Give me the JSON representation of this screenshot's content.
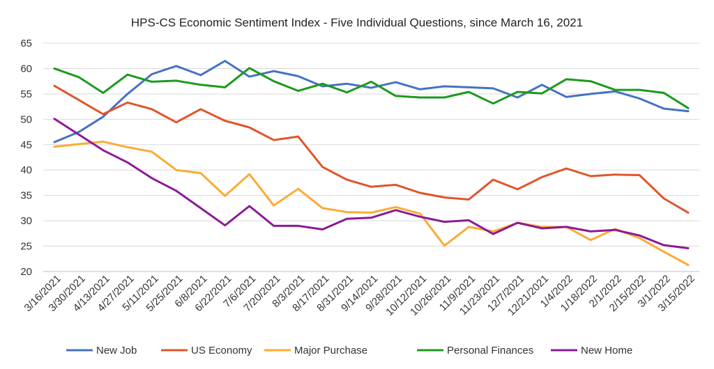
{
  "chart_data": {
    "type": "line",
    "title": "HPS-CS Economic Sentiment Index - Five Individual Questions, since March 16, 2021",
    "xlabel": "",
    "ylabel": "",
    "ylim": [
      20,
      65
    ],
    "yticks": [
      "65",
      "60",
      "55",
      "50",
      "45",
      "40",
      "35",
      "30",
      "25",
      "20"
    ],
    "grid": "horizontal",
    "legend": "bottom",
    "categories": [
      "3/16/2021",
      "3/30/2021",
      "4/13/2021",
      "4/27/2021",
      "5/11/2021",
      "5/25/2021",
      "6/8/2021",
      "6/22/2021",
      "7/6/2021",
      "7/20/2021",
      "8/3/2021",
      "8/17/2021",
      "8/31/2021",
      "9/14/2021",
      "9/28/2021",
      "10/12/2021",
      "10/26/2021",
      "11/9/2021",
      "11/23/2021",
      "12/7/2021",
      "12/21/2021",
      "1/4/2022",
      "1/18/2022",
      "2/1/2022",
      "2/15/2022",
      "3/1/2022",
      "3/15/2022"
    ],
    "series": [
      {
        "name": "New Job",
        "color": "#4472c4",
        "values": [
          45.5,
          47.5,
          50.5,
          55.0,
          58.9,
          60.5,
          58.7,
          61.5,
          58.4,
          59.5,
          58.5,
          56.5,
          57.0,
          56.2,
          57.3,
          55.9,
          56.5,
          56.3,
          56.1,
          54.3,
          56.8,
          54.4,
          55.0,
          55.5,
          54.1,
          52.1,
          51.6
        ]
      },
      {
        "name": "US Economy",
        "color": "#e0552a",
        "values": [
          56.6,
          53.8,
          51.0,
          53.3,
          52.0,
          49.4,
          52.0,
          49.7,
          48.4,
          45.9,
          46.6,
          40.6,
          38.1,
          36.7,
          37.1,
          35.5,
          34.6,
          34.2,
          38.1,
          36.2,
          38.6,
          40.3,
          38.8,
          39.1,
          39.0,
          34.4,
          31.6
        ]
      },
      {
        "name": "Major Purchase",
        "color": "#fcab34",
        "values": [
          44.6,
          45.1,
          45.6,
          44.5,
          43.6,
          40.0,
          39.4,
          34.9,
          39.2,
          33.0,
          36.3,
          32.5,
          31.7,
          31.6,
          32.7,
          31.4,
          25.1,
          28.8,
          27.9,
          29.6,
          28.8,
          28.8,
          26.2,
          28.4,
          26.6,
          23.9,
          21.3
        ]
      },
      {
        "name": "Personal Finances",
        "color": "#1c9a1c",
        "values": [
          60.0,
          58.3,
          55.2,
          58.8,
          57.4,
          57.6,
          56.8,
          56.3,
          60.1,
          57.5,
          55.6,
          57.0,
          55.3,
          57.4,
          54.6,
          54.3,
          54.3,
          55.4,
          53.1,
          55.4,
          55.1,
          57.9,
          57.5,
          55.8,
          55.8,
          55.2,
          52.2
        ]
      },
      {
        "name": "New Home",
        "color": "#8b1a96",
        "values": [
          50.1,
          47.0,
          43.9,
          41.5,
          38.4,
          35.9,
          32.5,
          29.1,
          32.9,
          29.0,
          29.0,
          28.3,
          30.4,
          30.6,
          32.1,
          30.8,
          29.8,
          30.1,
          27.4,
          29.6,
          28.5,
          28.8,
          27.9,
          28.2,
          27.1,
          25.2,
          24.6
        ]
      }
    ]
  }
}
